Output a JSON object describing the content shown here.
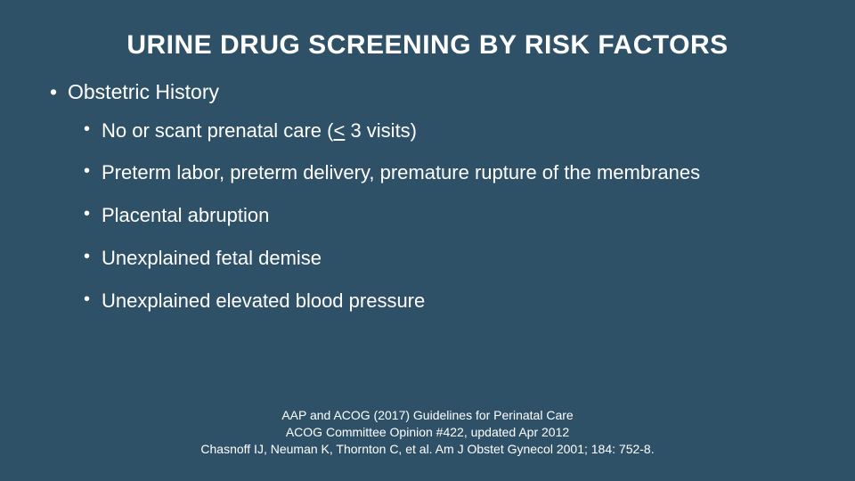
{
  "slide": {
    "background_color": "#2e5168",
    "text_color": "#ffffff",
    "title": "URINE DRUG SCREENING BY RISK FACTORS",
    "title_fontsize": 30,
    "list_level1_fontsize": 23,
    "list_level2_fontsize": 22,
    "footer_fontsize": 14,
    "top_item": "Obstetric History",
    "sub_item_1_prefix": "No or scant prenatal care (",
    "sub_item_1_underlined": "<",
    "sub_item_1_suffix": " 3 visits)",
    "sub_item_2": "Preterm labor, preterm delivery, premature rupture of the membranes",
    "sub_item_3": "Placental abruption",
    "sub_item_4": "Unexplained fetal demise",
    "sub_item_5": "Unexplained elevated blood pressure",
    "footer_line_1": "AAP and ACOG (2017) Guidelines for Perinatal Care",
    "footer_line_2": "ACOG Committee Opinion #422, updated Apr 2012",
    "footer_line_3": "Chasnoff IJ, Neuman K, Thornton C, et al. Am J Obstet Gynecol 2001; 184: 752-8."
  }
}
